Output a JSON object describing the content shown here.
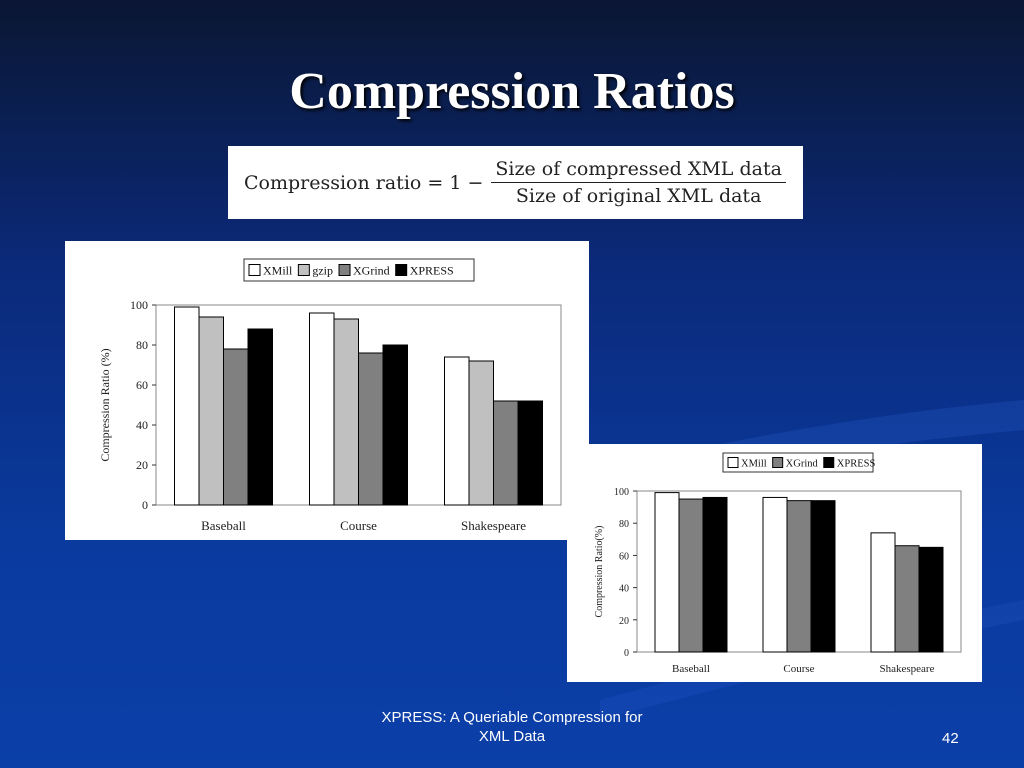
{
  "slide": {
    "title": "Compression Ratios",
    "footer_line1": "XPRESS: A Queriable Compression for",
    "footer_line2": "XML Data",
    "page_number": "42"
  },
  "formula": {
    "lhs": "Compression ratio = 1 −",
    "numerator": "Size of compressed XML data",
    "denominator": "Size of original XML data"
  },
  "chart_data": [
    {
      "type": "bar",
      "categories": [
        "Baseball",
        "Course",
        "Shakespeare"
      ],
      "series": [
        {
          "name": "XMill",
          "color": "#ffffff",
          "values": [
            99,
            96,
            74
          ]
        },
        {
          "name": "gzip",
          "color": "#c0c0c0",
          "values": [
            94,
            93,
            72
          ]
        },
        {
          "name": "XGrind",
          "color": "#808080",
          "values": [
            78,
            76,
            52
          ]
        },
        {
          "name": "XPRESS",
          "color": "#000000",
          "values": [
            88,
            80,
            52
          ]
        }
      ],
      "ylabel": "Compression Ratio (%)",
      "xlabel": "",
      "ylim": [
        0,
        100
      ],
      "yticks": [
        "0",
        "20",
        "40",
        "60",
        "80",
        "100"
      ],
      "legend": "top",
      "grid": false
    },
    {
      "type": "bar",
      "categories": [
        "Baseball",
        "Course",
        "Shakespeare"
      ],
      "series": [
        {
          "name": "XMill",
          "color": "#ffffff",
          "values": [
            99,
            96,
            74
          ]
        },
        {
          "name": "XGrind",
          "color": "#808080",
          "values": [
            95,
            94,
            66
          ]
        },
        {
          "name": "XPRESS",
          "color": "#000000",
          "values": [
            96,
            94,
            65
          ]
        }
      ],
      "ylabel": "Compression Ratio(%)",
      "xlabel": "",
      "ylim": [
        0,
        100
      ],
      "yticks": [
        "0",
        "20",
        "40",
        "60",
        "80",
        "100"
      ],
      "legend": "top",
      "grid": false
    }
  ]
}
